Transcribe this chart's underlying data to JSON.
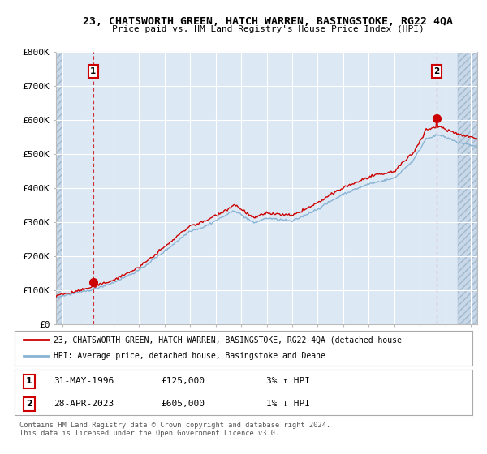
{
  "title": "23, CHATSWORTH GREEN, HATCH WARREN, BASINGSTOKE, RG22 4QA",
  "subtitle": "Price paid vs. HM Land Registry's House Price Index (HPI)",
  "legend_red": "23, CHATSWORTH GREEN, HATCH WARREN, BASINGSTOKE, RG22 4QA (detached house",
  "legend_blue": "HPI: Average price, detached house, Basingstoke and Deane",
  "point1_label": "1",
  "point1_date": "31-MAY-1996",
  "point1_price": "£125,000",
  "point1_hpi": "3% ↑ HPI",
  "point2_label": "2",
  "point2_date": "28-APR-2023",
  "point2_price": "£605,000",
  "point2_hpi": "1% ↓ HPI",
  "copyright": "Contains HM Land Registry data © Crown copyright and database right 2024.\nThis data is licensed under the Open Government Licence v3.0.",
  "ylim": [
    0,
    800000
  ],
  "yticks": [
    0,
    100000,
    200000,
    300000,
    400000,
    500000,
    600000,
    700000,
    800000
  ],
  "ytick_labels": [
    "£0",
    "£100K",
    "£200K",
    "£300K",
    "£400K",
    "£500K",
    "£600K",
    "£700K",
    "£800K"
  ],
  "xlim_start": 1993.5,
  "xlim_end": 2026.5,
  "point1_x": 1996.42,
  "point1_y": 125000,
  "point2_x": 2023.33,
  "point2_y": 605000,
  "red_color": "#cc0000",
  "blue_color": "#8ab4d4",
  "bg_color": "#ffffff",
  "plot_bg": "#dce9f5",
  "grid_color": "#ffffff",
  "hatch_fill": "#c8d8e8"
}
